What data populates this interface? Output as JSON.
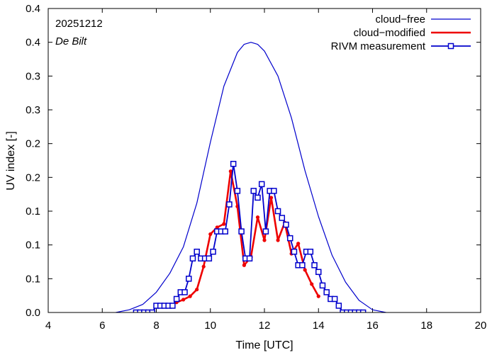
{
  "chart_data": {
    "type": "line",
    "annotations": {
      "date": "20251212",
      "location": "De Bilt"
    },
    "xlabel": "Time  [UTC]",
    "ylabel": "UV index  [-]",
    "xlim": [
      4,
      20
    ],
    "ylim": [
      0,
      0.45
    ],
    "x_ticks": [
      4,
      6,
      8,
      10,
      12,
      14,
      16,
      18,
      20
    ],
    "y_ticks": [
      0,
      0.05,
      0.1,
      0.15,
      0.2,
      0.25,
      0.3,
      0.35,
      0.4,
      0.45
    ],
    "y_tick_labels": [
      "0.0",
      "0.1",
      "0.1",
      "0.1",
      "0.2",
      "0.2",
      "0.3",
      "0.3",
      "0.4",
      "0.4"
    ],
    "grid": false,
    "legend_position": "top-right",
    "series": [
      {
        "name": "cloud−free",
        "color": "#0000cc",
        "marker": "none",
        "x": [
          6.5,
          7.0,
          7.5,
          8.0,
          8.5,
          9.0,
          9.5,
          10.0,
          10.5,
          11.0,
          11.25,
          11.5,
          11.75,
          12.0,
          12.5,
          13.0,
          13.5,
          14.0,
          14.5,
          15.0,
          15.5,
          16.0,
          16.5
        ],
        "y": [
          0.0,
          0.004,
          0.012,
          0.03,
          0.058,
          0.097,
          0.162,
          0.252,
          0.335,
          0.385,
          0.397,
          0.4,
          0.397,
          0.387,
          0.35,
          0.288,
          0.21,
          0.142,
          0.085,
          0.045,
          0.018,
          0.004,
          0.0
        ]
      },
      {
        "name": "cloud−modified",
        "color": "#ee0000",
        "marker": "dot",
        "x": [
          8.5,
          8.75,
          9.0,
          9.25,
          9.5,
          9.75,
          10.0,
          10.25,
          10.5,
          10.75,
          11.0,
          11.25,
          11.5,
          11.75,
          12.0,
          12.25,
          12.5,
          12.75,
          13.0,
          13.25,
          13.5,
          13.75,
          14.0
        ],
        "y": [
          0.01,
          0.015,
          0.019,
          0.024,
          0.034,
          0.068,
          0.116,
          0.126,
          0.131,
          0.209,
          0.157,
          0.07,
          0.082,
          0.141,
          0.107,
          0.17,
          0.107,
          0.133,
          0.087,
          0.102,
          0.063,
          0.042,
          0.024
        ]
      },
      {
        "name": "RIVM measurement",
        "color": "#0000cc",
        "marker": "square",
        "x": [
          7.25,
          7.4,
          7.55,
          7.7,
          7.85,
          8.0,
          8.15,
          8.3,
          8.45,
          8.6,
          8.75,
          8.9,
          9.05,
          9.2,
          9.35,
          9.5,
          9.65,
          9.8,
          9.95,
          10.1,
          10.25,
          10.4,
          10.55,
          10.7,
          10.85,
          11.0,
          11.15,
          11.3,
          11.45,
          11.6,
          11.75,
          11.9,
          12.05,
          12.2,
          12.35,
          12.5,
          12.65,
          12.8,
          12.95,
          13.1,
          13.25,
          13.4,
          13.55,
          13.7,
          13.85,
          14.0,
          14.15,
          14.3,
          14.45,
          14.6,
          14.75,
          14.9,
          15.05,
          15.2,
          15.35,
          15.5,
          15.65
        ],
        "y": [
          0.0,
          0.0,
          0.0,
          0.0,
          0.0,
          0.01,
          0.01,
          0.01,
          0.01,
          0.01,
          0.02,
          0.03,
          0.03,
          0.05,
          0.08,
          0.09,
          0.08,
          0.08,
          0.08,
          0.09,
          0.12,
          0.12,
          0.12,
          0.16,
          0.22,
          0.18,
          0.12,
          0.08,
          0.08,
          0.18,
          0.17,
          0.19,
          0.12,
          0.18,
          0.18,
          0.15,
          0.14,
          0.13,
          0.11,
          0.09,
          0.07,
          0.07,
          0.09,
          0.09,
          0.07,
          0.06,
          0.04,
          0.03,
          0.02,
          0.02,
          0.01,
          0.0,
          0.0,
          0.0,
          0.0,
          0.0,
          0.0
        ]
      }
    ]
  }
}
